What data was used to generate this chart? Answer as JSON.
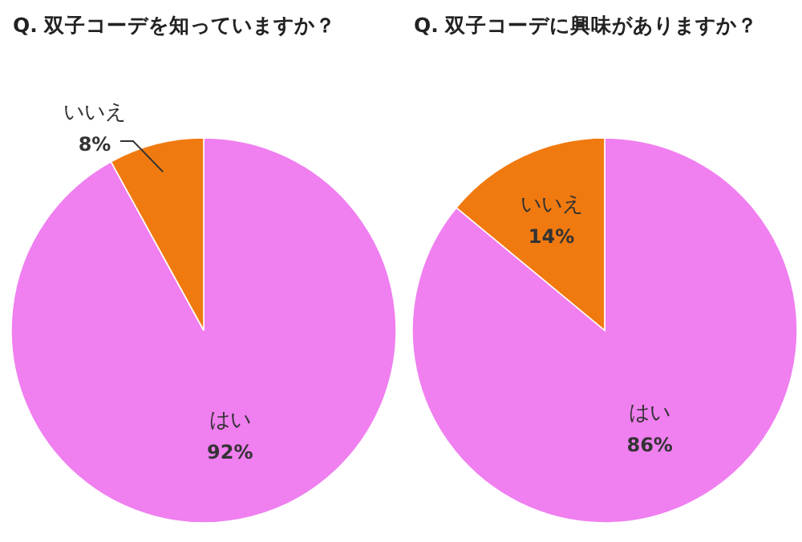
{
  "chart_data": [
    {
      "type": "pie",
      "title": "Q. 双子コーデを知っていますか？",
      "categories": [
        "はい",
        "いいえ"
      ],
      "values": [
        92,
        8
      ],
      "value_labels": [
        "92%",
        "8%"
      ],
      "colors": [
        "#f07ff0",
        "#f07a10"
      ]
    },
    {
      "type": "pie",
      "title": "Q. 双子コーデに興味がありますか？",
      "categories": [
        "はい",
        "いいえ"
      ],
      "values": [
        86,
        14
      ],
      "value_labels": [
        "86%",
        "14%"
      ],
      "colors": [
        "#f07ff0",
        "#f07a10"
      ]
    }
  ]
}
